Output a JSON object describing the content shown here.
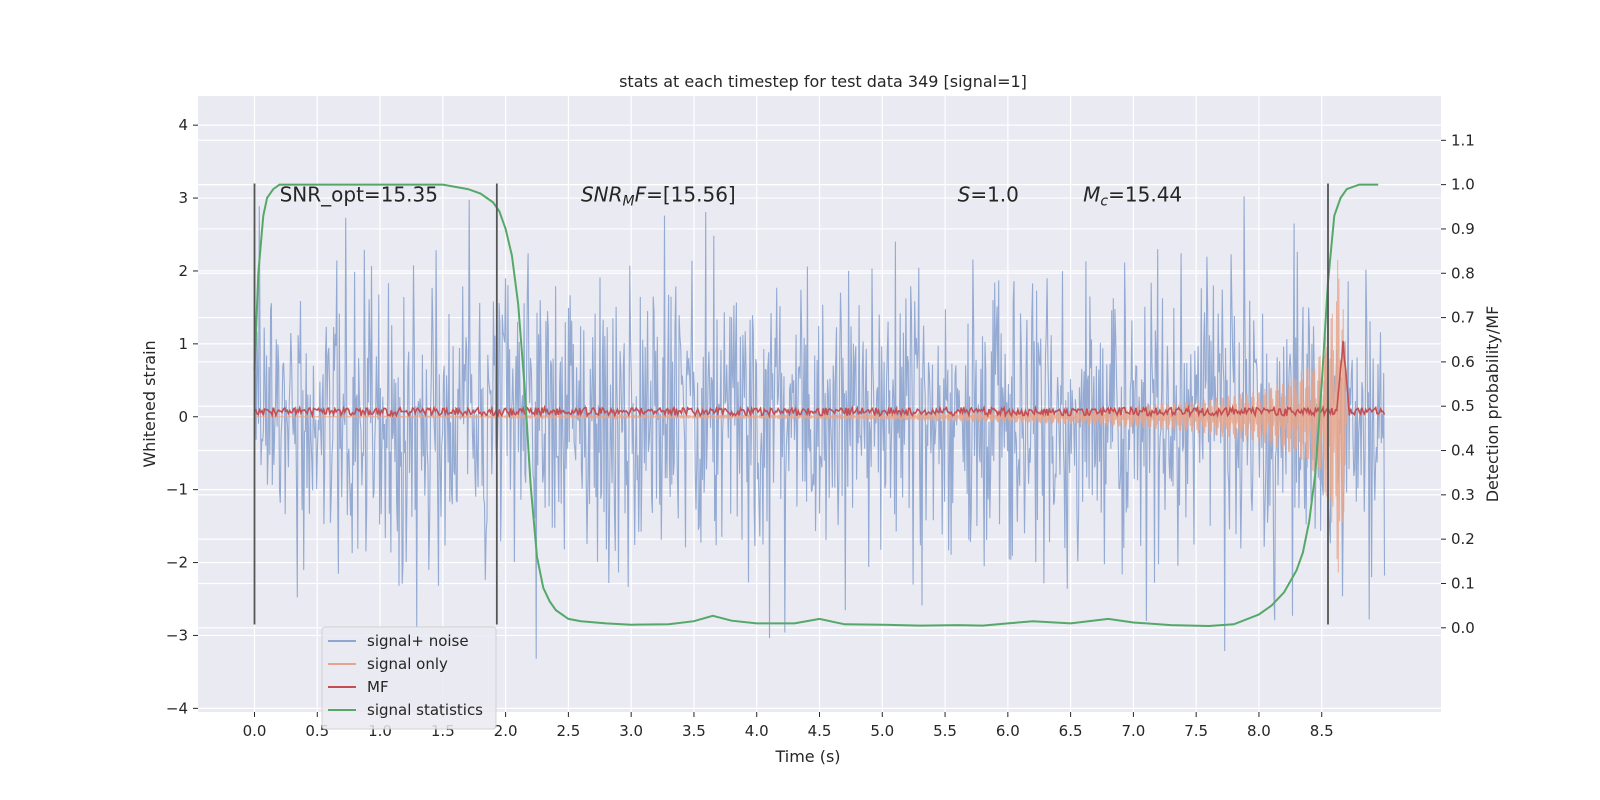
{
  "chart_data": {
    "type": "line",
    "title": "stats at each timestep for test data 349 [signal=1]",
    "xlabel": "Time (s)",
    "ylabel": "Whitened strain",
    "y2label": "Detection probability/MF",
    "xlim": [
      -0.45,
      9.45
    ],
    "ylim": [
      -4.05,
      4.4
    ],
    "y2lim": [
      -0.19,
      1.2
    ],
    "xticks": [
      "0.0",
      "0.5",
      "1.0",
      "1.5",
      "2.0",
      "2.5",
      "3.0",
      "3.5",
      "4.0",
      "4.5",
      "5.0",
      "5.5",
      "6.0",
      "6.5",
      "7.0",
      "7.5",
      "8.0",
      "8.5"
    ],
    "yticks": [
      "4",
      "3",
      "2",
      "1",
      "0",
      "−1",
      "−2",
      "−3",
      "−4"
    ],
    "y2ticks": [
      "0.0",
      "0.1",
      "0.2",
      "0.3",
      "0.4",
      "0.5",
      "0.6",
      "0.7",
      "0.8",
      "0.9",
      "1.0",
      "1.1"
    ],
    "grid": true,
    "legend_position": "lower-left",
    "background_color": "#eaeaf2",
    "series": [
      {
        "name": "signal+ noise",
        "color": "#8fa6d0",
        "axis": "left",
        "duration": 9.0,
        "noise_sigma": 1.0,
        "envelope_range": [
          -3.4,
          4.0
        ]
      },
      {
        "name": "signal only",
        "color": "#e8a48a",
        "axis": "left",
        "envelope_x": [
          4.5,
          5.5,
          6.5,
          7.0,
          7.5,
          8.0,
          8.3,
          8.5,
          8.6,
          8.65,
          8.7
        ],
        "envelope_y": [
          0.03,
          0.06,
          0.1,
          0.15,
          0.22,
          0.35,
          0.55,
          0.9,
          1.6,
          2.6,
          0.1
        ]
      },
      {
        "name": "MF",
        "color": "#c44e52",
        "axis": "left",
        "baseline": 0.07,
        "noise_amp": 0.07,
        "peak_time": 8.67,
        "peak_value": 1.0
      },
      {
        "name": "signal statistics",
        "color": "#55a868",
        "axis": "right",
        "x": [
          0.0,
          0.03,
          0.07,
          0.1,
          0.15,
          0.2,
          0.3,
          0.5,
          1.0,
          1.5,
          1.7,
          1.8,
          1.9,
          1.95,
          2.0,
          2.05,
          2.1,
          2.15,
          2.2,
          2.25,
          2.3,
          2.35,
          2.4,
          2.5,
          2.6,
          2.8,
          3.0,
          3.3,
          3.5,
          3.65,
          3.8,
          4.0,
          4.3,
          4.5,
          4.7,
          5.0,
          5.3,
          5.6,
          5.8,
          6.0,
          6.2,
          6.5,
          6.8,
          7.0,
          7.3,
          7.6,
          7.8,
          8.0,
          8.1,
          8.2,
          8.3,
          8.35,
          8.4,
          8.45,
          8.5,
          8.55,
          8.6,
          8.65,
          8.7,
          8.8,
          8.9,
          8.95
        ],
        "y": [
          0.58,
          0.8,
          0.93,
          0.97,
          0.99,
          1.0,
          1.0,
          1.0,
          1.0,
          1.0,
          0.99,
          0.98,
          0.96,
          0.94,
          0.9,
          0.84,
          0.73,
          0.55,
          0.32,
          0.16,
          0.09,
          0.06,
          0.04,
          0.02,
          0.015,
          0.01,
          0.007,
          0.008,
          0.015,
          0.027,
          0.016,
          0.01,
          0.01,
          0.02,
          0.008,
          0.007,
          0.005,
          0.006,
          0.005,
          0.01,
          0.015,
          0.01,
          0.02,
          0.012,
          0.006,
          0.004,
          0.008,
          0.03,
          0.05,
          0.08,
          0.13,
          0.17,
          0.24,
          0.35,
          0.55,
          0.78,
          0.93,
          0.97,
          0.99,
          1.0,
          1.0,
          1.0
        ]
      }
    ],
    "vlines": [
      0.0,
      1.93,
      8.55
    ],
    "vline_range": [
      -2.85,
      3.2
    ],
    "annotations": [
      {
        "label": "SNR_opt=15.35",
        "x": 0.2,
        "y": 3.05
      },
      {
        "label": "SNRMF=[15.56]",
        "x": 2.6,
        "y": 3.05
      },
      {
        "label": "S=1.0",
        "x": 5.6,
        "y": 3.05
      },
      {
        "label": "Mc=15.44",
        "x": 6.6,
        "y": 3.05
      }
    ]
  }
}
